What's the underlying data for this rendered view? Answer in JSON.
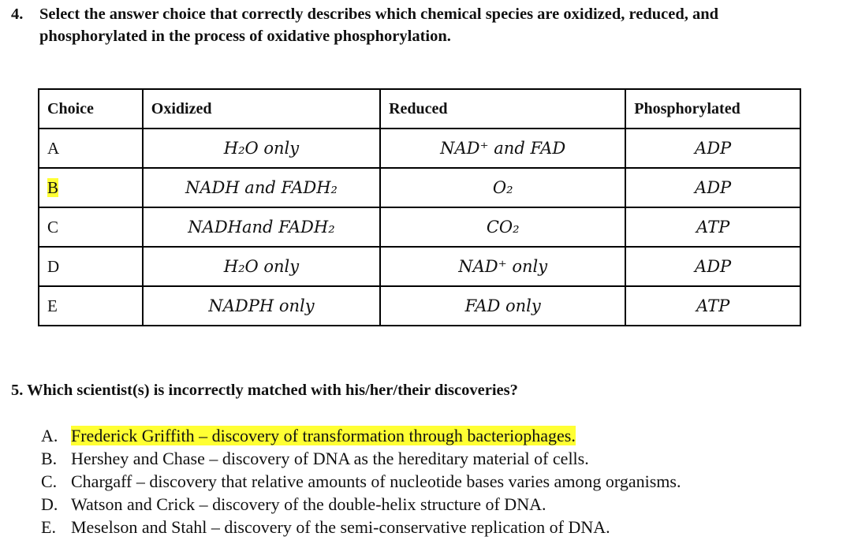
{
  "q4": {
    "number": "4.",
    "line1": "Select the answer choice that correctly describes which chemical species are oxidized, reduced, and",
    "line2": "phosphorylated in the process of oxidative phosphorylation."
  },
  "table": {
    "headers": [
      "Choice",
      "Oxidized",
      "Reduced",
      "Phosphorylated"
    ],
    "rows": [
      {
        "choice": "A",
        "oxidized": "H₂O only",
        "reduced": "NAD⁺ and FAD",
        "phosphorylated": "ADP",
        "highlighted": false
      },
      {
        "choice": "B",
        "oxidized": "NADH and FADH₂",
        "reduced": "O₂",
        "phosphorylated": "ADP",
        "highlighted": true
      },
      {
        "choice": "C",
        "oxidized": "NADHand FADH₂",
        "reduced": "CO₂",
        "phosphorylated": "ATP",
        "highlighted": false
      },
      {
        "choice": "D",
        "oxidized": "H₂O only",
        "reduced": "NAD⁺ only",
        "phosphorylated": "ADP",
        "highlighted": false
      },
      {
        "choice": "E",
        "oxidized": "NADPH only",
        "reduced": "FAD only",
        "phosphorylated": "ATP",
        "highlighted": false
      }
    ]
  },
  "q5": {
    "title": "5. Which scientist(s) is incorrectly matched with his/her/their discoveries?",
    "answers": [
      {
        "letter": "A.",
        "text": "Frederick Griffith – discovery of transformation through bacteriophages.",
        "highlighted": true
      },
      {
        "letter": "B.",
        "text": "Hershey and Chase – discovery of DNA as the hereditary material of cells.",
        "highlighted": false
      },
      {
        "letter": "C.",
        "text": "Chargaff – discovery that relative amounts of nucleotide bases varies among organisms.",
        "highlighted": false
      },
      {
        "letter": "D.",
        "text": "Watson and Crick – discovery of the double-helix structure of DNA.",
        "highlighted": false
      },
      {
        "letter": "E.",
        "text": "Meselson and Stahl – discovery of the semi-conservative replication of DNA.",
        "highlighted": false
      }
    ]
  },
  "colors": {
    "highlight": "#ffff33"
  }
}
